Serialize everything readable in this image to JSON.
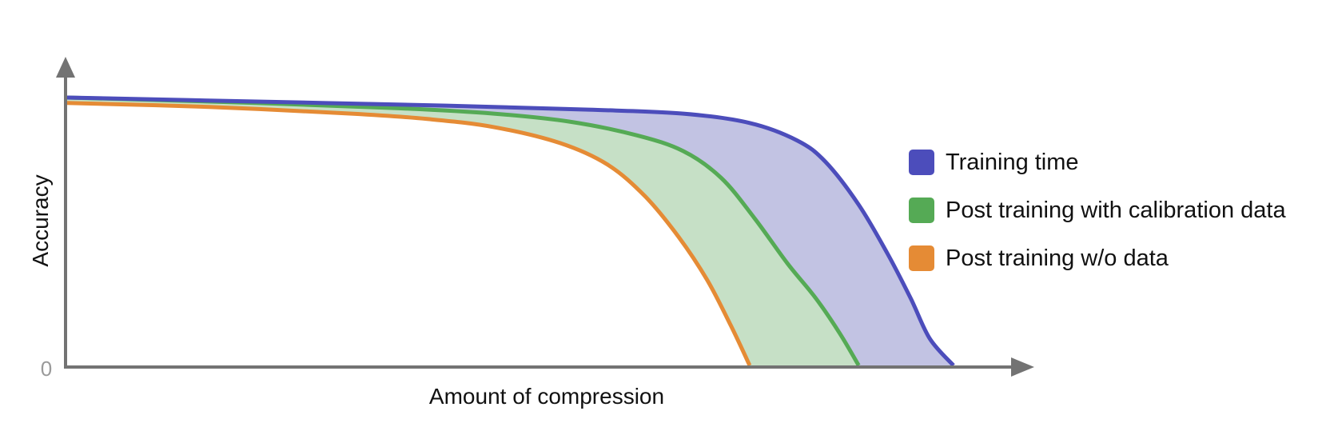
{
  "chart_data": {
    "type": "line",
    "xlabel": "Amount of compression",
    "ylabel": "Accuracy",
    "y_tick_labels": [
      "0"
    ],
    "grid": false,
    "legend_position": "right",
    "filled_between_series": true,
    "series": [
      {
        "name": "Training time",
        "color": "#4C4DBB",
        "fill": "#C2C3E3",
        "x": [
          0,
          0.2,
          0.4,
          0.55,
          0.65,
          0.72,
          0.77,
          0.8,
          0.835,
          0.865,
          0.89,
          0.91,
          0.935
        ],
        "y": [
          1.0,
          0.985,
          0.97,
          0.955,
          0.94,
          0.905,
          0.84,
          0.76,
          0.6,
          0.42,
          0.25,
          0.1,
          0.0
        ]
      },
      {
        "name": "Post training with calibration data",
        "color": "#55AA55",
        "fill": "#C6E0C6",
        "x": [
          0,
          0.2,
          0.35,
          0.45,
          0.53,
          0.6,
          0.65,
          0.69,
          0.725,
          0.76,
          0.79,
          0.815,
          0.835
        ],
        "y": [
          1.0,
          0.98,
          0.96,
          0.94,
          0.91,
          0.86,
          0.8,
          0.7,
          0.55,
          0.38,
          0.25,
          0.12,
          0.0
        ]
      },
      {
        "name": "Post training w/o data",
        "color": "#E58B35",
        "x": [
          0,
          0.15,
          0.3,
          0.38,
          0.45,
          0.52,
          0.57,
          0.61,
          0.645,
          0.675,
          0.7,
          0.72
        ],
        "y": [
          0.98,
          0.965,
          0.94,
          0.92,
          0.89,
          0.83,
          0.75,
          0.63,
          0.48,
          0.32,
          0.15,
          0.0
        ]
      }
    ],
    "xlim": [
      0,
      1
    ],
    "ylim": [
      0,
      1
    ]
  }
}
